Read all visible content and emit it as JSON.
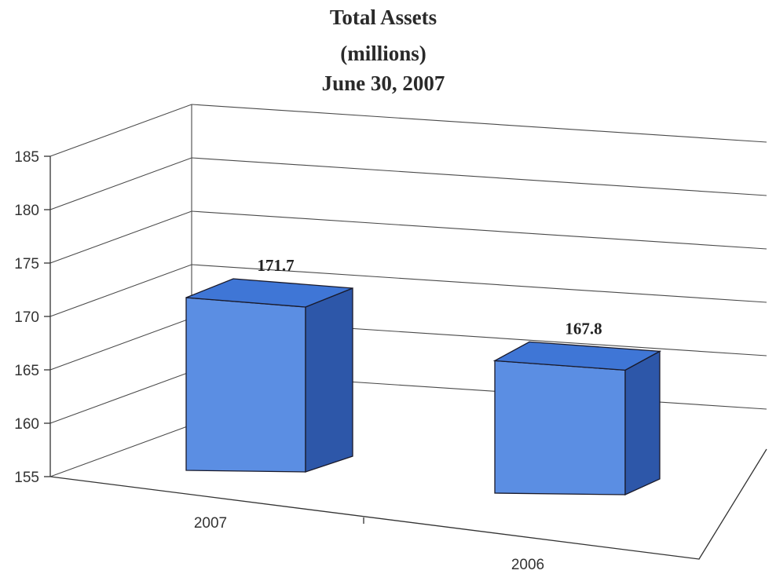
{
  "chart_data": {
    "type": "bar",
    "title_lines": [
      "Total Assets",
      "(millions)",
      "June 30, 2007"
    ],
    "categories": [
      "2007",
      "2006"
    ],
    "values": [
      171.7,
      167.8
    ],
    "data_labels": [
      "171.7",
      "167.8"
    ],
    "y_ticks": [
      "155",
      "160",
      "165",
      "170",
      "175",
      "180",
      "185"
    ],
    "ylim": [
      155,
      185
    ],
    "grid": true,
    "three_d": true,
    "legend": "none",
    "bar_color": "#5b8ee3"
  }
}
